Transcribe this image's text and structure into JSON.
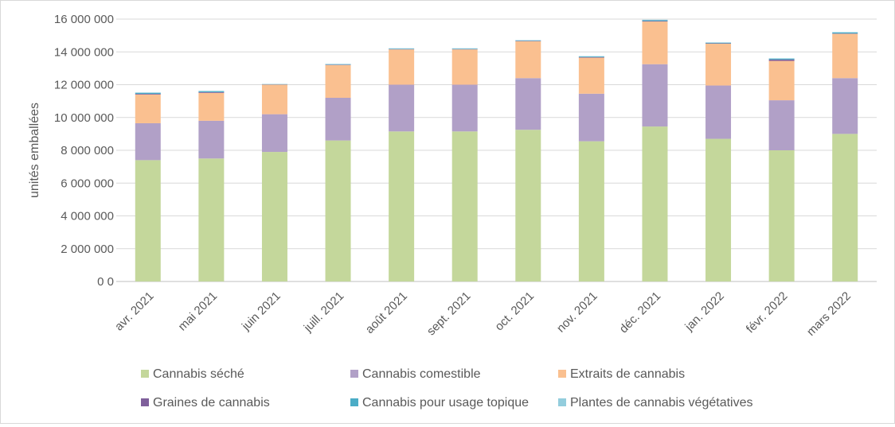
{
  "chart_data": {
    "type": "bar",
    "stacked": true,
    "title": "",
    "xlabel": "",
    "ylabel": "unités emballées",
    "ylim": [
      0,
      16000000
    ],
    "y_ticks": [
      0,
      2000000,
      4000000,
      6000000,
      8000000,
      10000000,
      12000000,
      14000000,
      16000000
    ],
    "y_tick_labels": [
      "0 0",
      "2 000 000",
      "4 000 000",
      "6 000 000",
      "8 000 000",
      "10 000 000",
      "12 000 000",
      "14 000 000",
      "16 000 000"
    ],
    "grid": true,
    "legend_position": "bottom",
    "categories": [
      "avr. 2021",
      "mai 2021",
      "juin 2021",
      "juill. 2021",
      "août 2021",
      "sept. 2021",
      "oct. 2021",
      "nov. 2021",
      "déc. 2021",
      "jan. 2022",
      "févr. 2022",
      "mars 2022"
    ],
    "series": [
      {
        "name": "Cannabis séché",
        "color": "#c4d79b",
        "values": [
          7400000,
          7500000,
          7900000,
          8600000,
          9150000,
          9150000,
          9250000,
          8550000,
          9450000,
          8700000,
          8000000,
          9000000
        ]
      },
      {
        "name": "Cannabis comestible",
        "color": "#b1a0c7",
        "values": [
          2250000,
          2300000,
          2300000,
          2600000,
          2850000,
          2850000,
          3150000,
          2900000,
          3800000,
          3250000,
          3050000,
          3400000
        ]
      },
      {
        "name": "Extraits de cannabis",
        "color": "#fac090",
        "values": [
          1750000,
          1700000,
          1800000,
          2000000,
          2150000,
          2150000,
          2250000,
          2200000,
          2600000,
          2550000,
          2400000,
          2700000
        ]
      },
      {
        "name": "Graines de cannabis",
        "color": "#7f5f9b",
        "values": [
          40000,
          45000,
          15000,
          20000,
          20000,
          20000,
          20000,
          30000,
          30000,
          20000,
          80000,
          20000
        ]
      },
      {
        "name": "Cannabis pour usage topique",
        "color": "#4bacc6",
        "values": [
          60000,
          60000,
          20000,
          30000,
          30000,
          30000,
          30000,
          40000,
          50000,
          40000,
          60000,
          60000
        ]
      },
      {
        "name": "Plantes de cannabis végétatives",
        "color": "#93cddd",
        "values": [
          30000,
          20000,
          10000,
          20000,
          20000,
          20000,
          20000,
          20000,
          30000,
          20000,
          20000,
          30000
        ]
      }
    ]
  }
}
